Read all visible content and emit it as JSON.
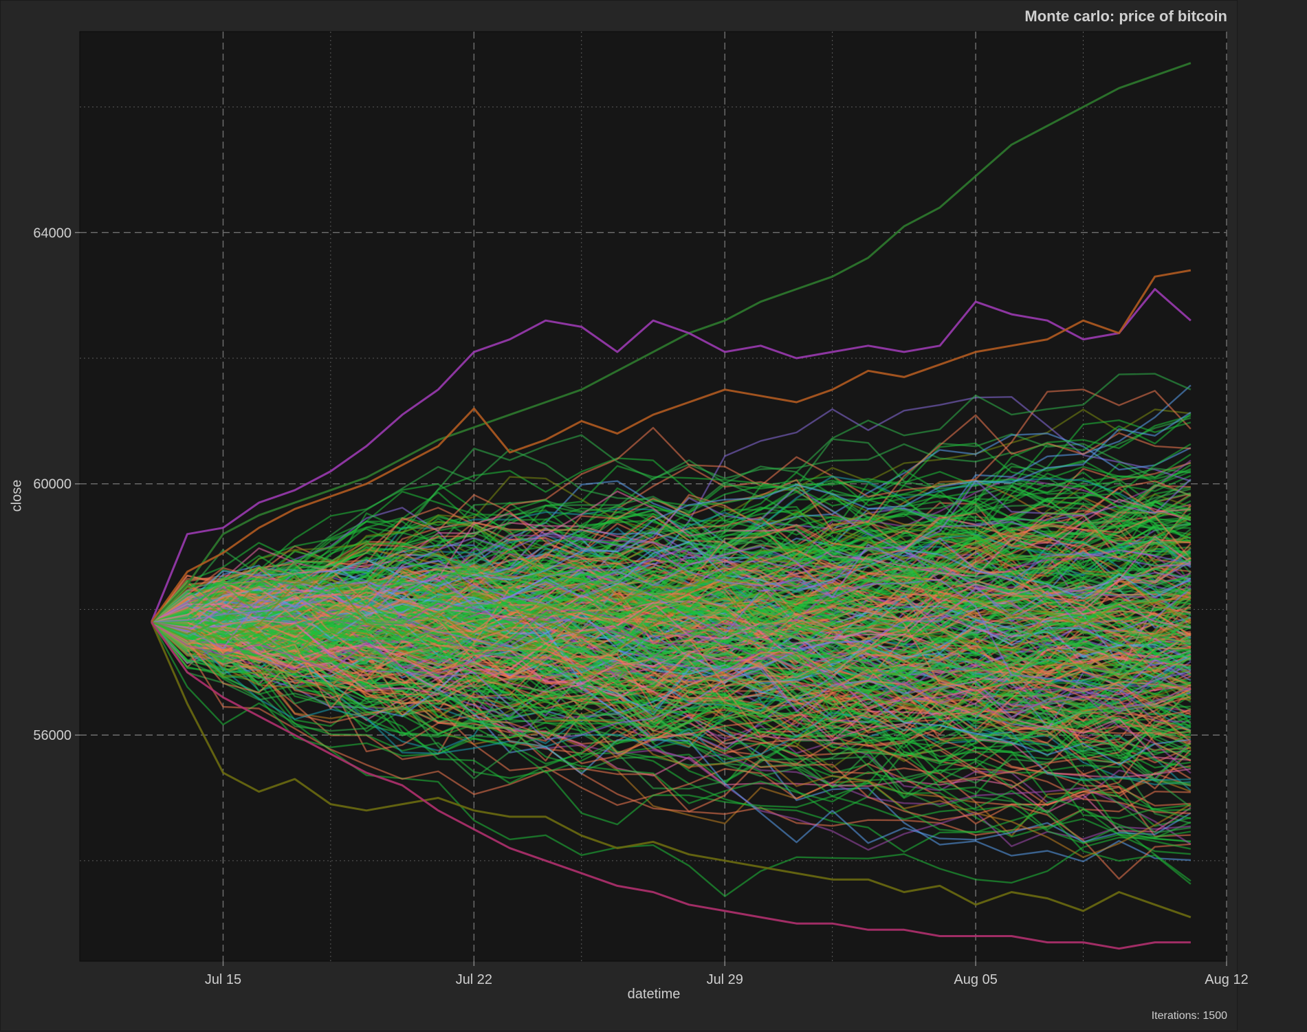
{
  "chart_data": {
    "type": "line",
    "title": "Monte carlo: price of bitcoin",
    "caption": "Iterations: 1500",
    "xlabel": "datetime",
    "ylabel": "close",
    "x_start": "2024-07-13",
    "x_end": "2024-08-11",
    "xlim": [
      "2024-07-11",
      "2024-08-12"
    ],
    "ylim": [
      52400,
      67200
    ],
    "start_value": 57800,
    "x_ticks": [
      {
        "date": "2024-07-15",
        "label": "Jul 15"
      },
      {
        "date": "2024-07-22",
        "label": "Jul 22"
      },
      {
        "date": "2024-07-29",
        "label": "Jul 29"
      },
      {
        "date": "2024-08-05",
        "label": "Aug 05"
      },
      {
        "date": "2024-08-12",
        "label": "Aug 12"
      }
    ],
    "x_minor_ticks": [
      "2024-07-18",
      "2024-07-25",
      "2024-08-01",
      "2024-08-08"
    ],
    "y_ticks": [
      {
        "value": 56000,
        "label": "56000"
      },
      {
        "value": 60000,
        "label": "60000"
      },
      {
        "value": 64000,
        "label": "64000"
      }
    ],
    "y_minor_ticks": [
      54000,
      58000,
      62000,
      66000
    ],
    "grid": true,
    "legend": "none",
    "iterations": 1500,
    "palette": [
      "#1fbf3a",
      "#2fb54a",
      "#f07850",
      "#ec6aa8",
      "#5aa0f0",
      "#8a6ee0",
      "#c08020",
      "#1aa0b0",
      "#a24ab0",
      "#7a8a10"
    ],
    "highlighted_series": [
      {
        "color": "#2e7a2e",
        "values": [
          57800,
          58400,
          59200,
          59500,
          59700,
          59900,
          60100,
          60400,
          60700,
          60900,
          61100,
          61300,
          61500,
          61800,
          62100,
          62400,
          62600,
          62900,
          63100,
          63300,
          63600,
          64100,
          64400,
          64900,
          65400,
          65700,
          66000,
          66300,
          66500,
          66700
        ]
      },
      {
        "color": "#9a3ab0",
        "values": [
          57800,
          59200,
          59300,
          59700,
          59900,
          60200,
          60600,
          61100,
          61500,
          62100,
          62300,
          62600,
          62500,
          62100,
          62600,
          62400,
          62100,
          62200,
          62000,
          62100,
          62200,
          62100,
          62200,
          62900,
          62700,
          62600,
          62300,
          62400,
          63100,
          62600
        ]
      },
      {
        "color": "#b05a20",
        "values": [
          57800,
          58600,
          58900,
          59300,
          59600,
          59800,
          60000,
          60300,
          60600,
          61200,
          60500,
          60700,
          61000,
          60800,
          61100,
          61300,
          61500,
          61400,
          61300,
          61500,
          61800,
          61700,
          61900,
          62100,
          62200,
          62300,
          62600,
          62400,
          63300,
          63400
        ]
      },
      {
        "color": "#6a6a10",
        "values": [
          57800,
          56500,
          55400,
          55100,
          55300,
          54900,
          54800,
          54900,
          55000,
          54800,
          54700,
          54700,
          54400,
          54200,
          54300,
          54100,
          54000,
          53900,
          53800,
          53700,
          53700,
          53500,
          53600,
          53300,
          53500,
          53400,
          53200,
          53500,
          53300,
          53100
        ]
      },
      {
        "color": "#b0306e",
        "values": [
          57800,
          57000,
          56600,
          56300,
          56000,
          55700,
          55400,
          55200,
          54800,
          54500,
          54200,
          54000,
          53800,
          53600,
          53500,
          53300,
          53200,
          53100,
          53000,
          53000,
          52900,
          52900,
          52800,
          52800,
          52800,
          52700,
          52700,
          52600,
          52700,
          52700
        ]
      }
    ]
  }
}
